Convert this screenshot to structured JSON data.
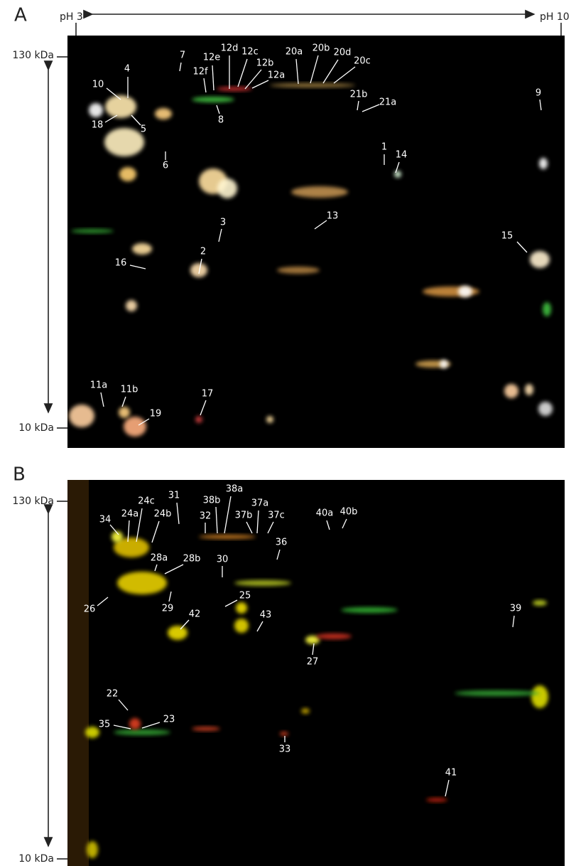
{
  "panels": [
    {
      "label": "A",
      "ph_left": "pH 3",
      "ph_right": "pH 10",
      "mw_top": "130 kDa",
      "mw_bottom": "10 kDa",
      "spots": [
        "7",
        "4",
        "12f",
        "12e",
        "12d",
        "12c",
        "12b",
        "12a",
        "20a",
        "20b",
        "20d",
        "20c",
        "10",
        "18",
        "5",
        "8",
        "21b",
        "21a",
        "9",
        "6",
        "1",
        "14",
        "13",
        "3",
        "15",
        "2",
        "16",
        "11a",
        "11b",
        "17",
        "19"
      ]
    },
    {
      "label": "B",
      "mw_top": "130 kDa",
      "mw_bottom": "10 kDa",
      "spots": [
        "31",
        "38b",
        "38a",
        "24c",
        "24a",
        "24b",
        "34",
        "32",
        "37a",
        "37b",
        "37c",
        "40a",
        "40b",
        "36",
        "28a",
        "28b",
        "30",
        "26",
        "29",
        "25",
        "42",
        "43",
        "39",
        "27",
        "22",
        "35",
        "23",
        "33",
        "41"
      ]
    }
  ]
}
